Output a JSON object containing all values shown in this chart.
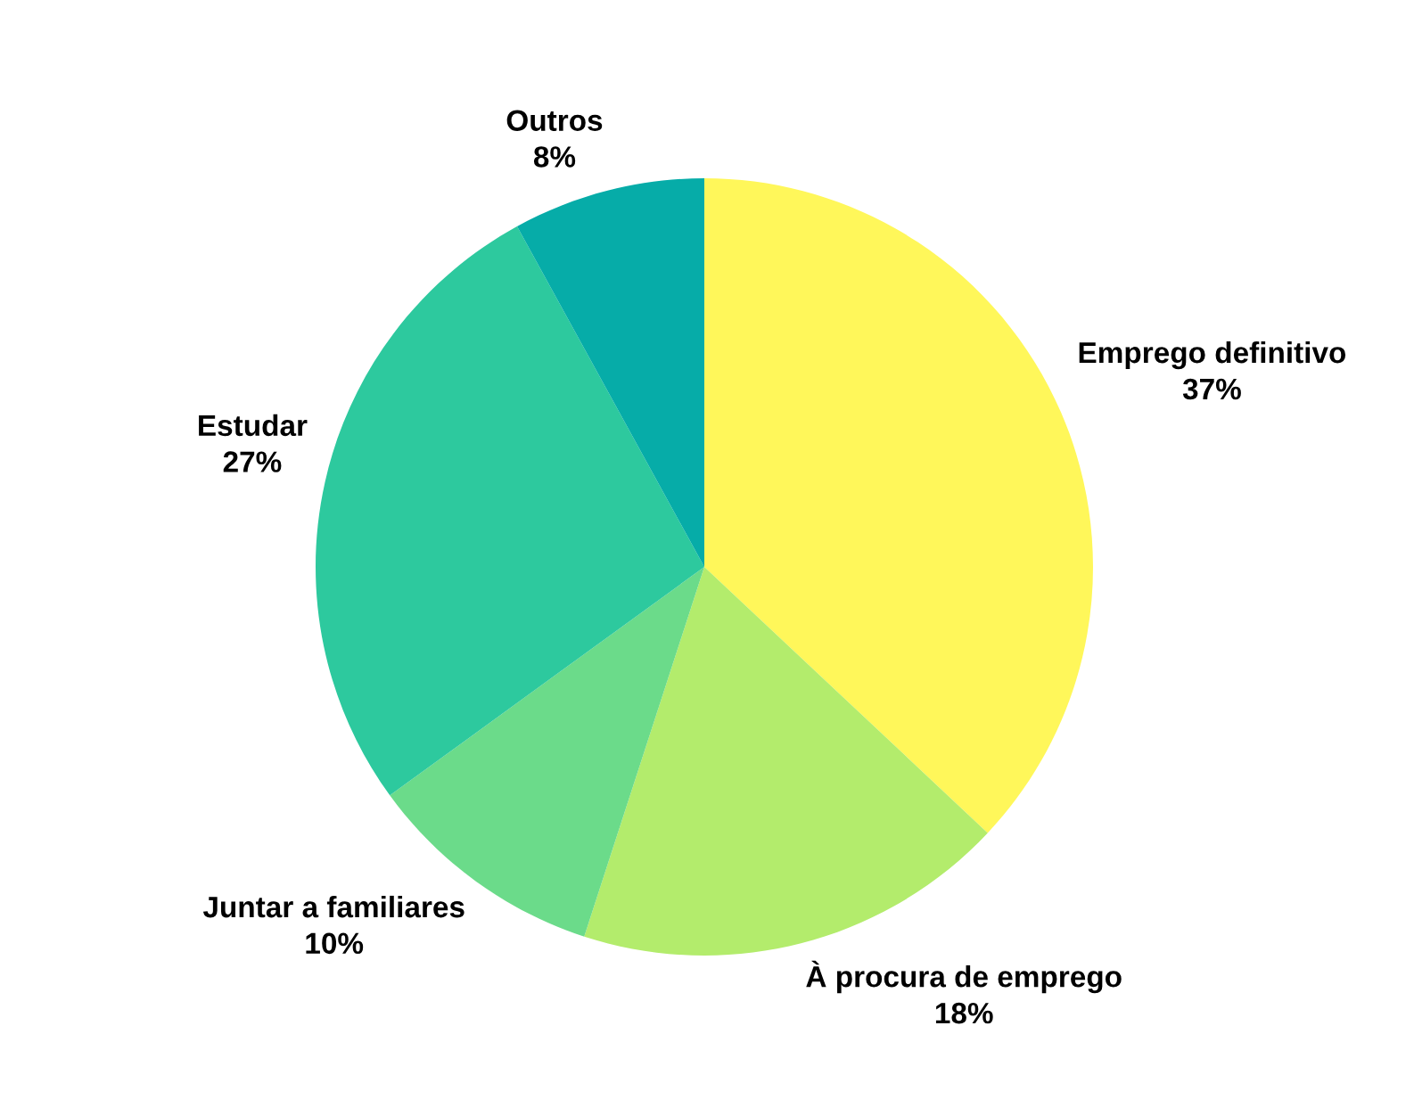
{
  "chart_data": {
    "type": "pie",
    "categories": [
      "Emprego definitivo",
      "À procura de emprego",
      "Juntar a familiares",
      "Estudar",
      "Outros"
    ],
    "values": [
      37,
      18,
      10,
      27,
      8
    ],
    "value_labels": [
      "37%",
      "18%",
      "10%",
      "27%",
      "8%"
    ],
    "colors": [
      "#fff75a",
      "#b3ec6c",
      "#6bdb8a",
      "#2dc99e",
      "#06aca8"
    ],
    "legend": false
  }
}
